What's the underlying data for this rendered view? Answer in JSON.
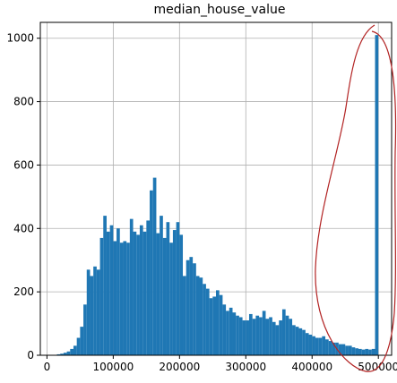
{
  "chart_data": {
    "type": "bar",
    "title": "median_house_value",
    "xlabel": "",
    "ylabel": "",
    "grid": true,
    "legend": "none",
    "xlim": [
      -10000,
      520000
    ],
    "ylim": [
      0,
      1050
    ],
    "xticks": [
      0,
      100000,
      200000,
      300000,
      400000,
      500000
    ],
    "xtick_labels": [
      "0",
      "100000",
      "200000",
      "300000",
      "400000",
      "500000"
    ],
    "yticks": [
      0,
      200,
      400,
      600,
      800,
      1000
    ],
    "ytick_labels": [
      "0",
      "200",
      "400",
      "600",
      "800",
      "1000"
    ],
    "bin_width": 5000,
    "series": [
      {
        "bin_start": [
          15000,
          20000,
          25000,
          30000,
          35000,
          40000,
          45000,
          50000,
          55000,
          60000,
          65000,
          70000,
          75000,
          80000,
          85000,
          90000,
          95000,
          100000,
          105000,
          110000,
          115000,
          120000,
          125000,
          130000,
          135000,
          140000,
          145000,
          150000,
          155000,
          160000,
          165000,
          170000,
          175000,
          180000,
          185000,
          190000,
          195000,
          200000,
          205000,
          210000,
          215000,
          220000,
          225000,
          230000,
          235000,
          240000,
          245000,
          250000,
          255000,
          260000,
          265000,
          270000,
          275000,
          280000,
          285000,
          290000,
          295000,
          300000,
          305000,
          310000,
          315000,
          320000,
          325000,
          330000,
          335000,
          340000,
          345000,
          350000,
          355000,
          360000,
          365000,
          370000,
          375000,
          380000,
          385000,
          390000,
          395000,
          400000,
          405000,
          410000,
          415000,
          420000,
          425000,
          430000,
          435000,
          440000,
          445000,
          450000,
          455000,
          460000,
          465000,
          470000,
          475000,
          480000,
          485000,
          490000,
          495000
        ],
        "counts": [
          3,
          5,
          8,
          12,
          20,
          30,
          55,
          90,
          160,
          270,
          250,
          280,
          270,
          370,
          440,
          390,
          410,
          360,
          400,
          355,
          360,
          355,
          430,
          390,
          380,
          410,
          390,
          425,
          520,
          560,
          385,
          440,
          370,
          420,
          355,
          395,
          420,
          380,
          250,
          300,
          310,
          290,
          250,
          245,
          225,
          210,
          180,
          185,
          205,
          190,
          160,
          140,
          150,
          135,
          125,
          120,
          110,
          110,
          130,
          115,
          125,
          120,
          140,
          115,
          120,
          105,
          95,
          110,
          145,
          125,
          115,
          95,
          90,
          85,
          80,
          70,
          65,
          60,
          55,
          55,
          60,
          50,
          45,
          40,
          40,
          35,
          35,
          30,
          30,
          25,
          22,
          20,
          18,
          20,
          18,
          20,
          1010
        ],
        "color": "#1f77b4"
      }
    ],
    "annotation": {
      "shape": "hand-drawn ellipse",
      "color": "#b22222",
      "encloses_x_range": [
        460000,
        515000
      ]
    }
  }
}
